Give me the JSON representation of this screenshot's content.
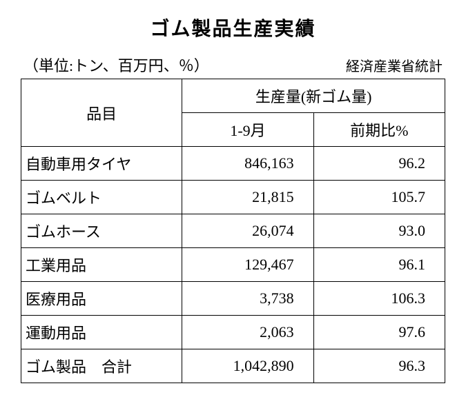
{
  "title": "ゴム製品生産実績",
  "unit_label": "（単位:トン、百万円、％）",
  "source_label": "経済産業省統計",
  "table": {
    "item_header": "品目",
    "group_header": "生産量(新ゴム量)",
    "period_header": "1-9月",
    "compare_header": "前期比%",
    "rows": [
      {
        "item": "自動車用タイヤ",
        "value": "846,163",
        "compare": "96.2"
      },
      {
        "item": "ゴムベルト",
        "value": "21,815",
        "compare": "105.7"
      },
      {
        "item": "ゴムホース",
        "value": "26,074",
        "compare": "93.0"
      },
      {
        "item": "工業用品",
        "value": "129,467",
        "compare": "96.1"
      },
      {
        "item": "医療用品",
        "value": "3,738",
        "compare": "106.3"
      },
      {
        "item": "運動用品",
        "value": "2,063",
        "compare": "97.6"
      },
      {
        "item": "ゴム製品　合計",
        "value": "1,042,890",
        "compare": "96.3"
      }
    ]
  },
  "style": {
    "background_color": "#ffffff",
    "text_color": "#000000",
    "border_color": "#000000",
    "title_fontsize": 28,
    "cell_fontsize": 22,
    "subtitle_fontsize": 22,
    "source_fontsize": 20
  }
}
